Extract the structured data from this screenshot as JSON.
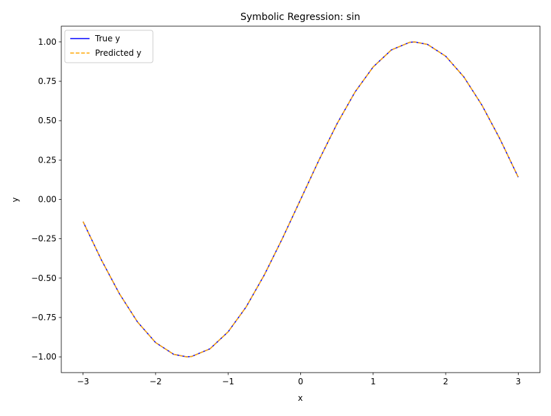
{
  "chart_data": {
    "type": "line",
    "title": "Symbolic Regression: sin",
    "xlabel": "x",
    "ylabel": "y",
    "xlim": [
      -3.3,
      3.3
    ],
    "ylim": [
      -1.1,
      1.1
    ],
    "grid": false,
    "legend_position": "top-left",
    "xticks": [
      -3,
      -2,
      -1,
      0,
      1,
      2,
      3
    ],
    "xtick_labels": [
      "−3",
      "−2",
      "−1",
      "0",
      "1",
      "2",
      "3"
    ],
    "yticks": [
      -1.0,
      -0.75,
      -0.5,
      -0.25,
      0.0,
      0.25,
      0.5,
      0.75,
      1.0
    ],
    "ytick_labels": [
      "−1.00",
      "−0.75",
      "−0.50",
      "−0.25",
      "0.00",
      "0.25",
      "0.50",
      "0.75",
      "1.00"
    ],
    "x": [
      -3.0,
      -2.75,
      -2.5,
      -2.25,
      -2.0,
      -1.75,
      -1.5708,
      -1.5,
      -1.25,
      -1.0,
      -0.75,
      -0.5,
      -0.25,
      0.0,
      0.25,
      0.5,
      0.75,
      1.0,
      1.25,
      1.5,
      1.5708,
      1.75,
      2.0,
      2.25,
      2.5,
      2.75,
      3.0
    ],
    "series": [
      {
        "name": "True y",
        "color": "#0000ff",
        "style": "solid",
        "values": [
          -0.141,
          -0.382,
          -0.598,
          -0.778,
          -0.909,
          -0.984,
          -1.0,
          -0.997,
          -0.949,
          -0.841,
          -0.682,
          -0.479,
          -0.247,
          0.0,
          0.247,
          0.479,
          0.682,
          0.841,
          0.949,
          0.997,
          1.0,
          0.984,
          0.909,
          0.778,
          0.598,
          0.382,
          0.141
        ]
      },
      {
        "name": "Predicted y",
        "color": "#ffa500",
        "style": "dashed",
        "values": [
          -0.141,
          -0.382,
          -0.598,
          -0.778,
          -0.909,
          -0.984,
          -1.0,
          -0.997,
          -0.949,
          -0.841,
          -0.682,
          -0.479,
          -0.247,
          0.0,
          0.247,
          0.479,
          0.682,
          0.841,
          0.949,
          0.997,
          1.0,
          0.984,
          0.909,
          0.778,
          0.598,
          0.382,
          0.141
        ]
      }
    ]
  }
}
